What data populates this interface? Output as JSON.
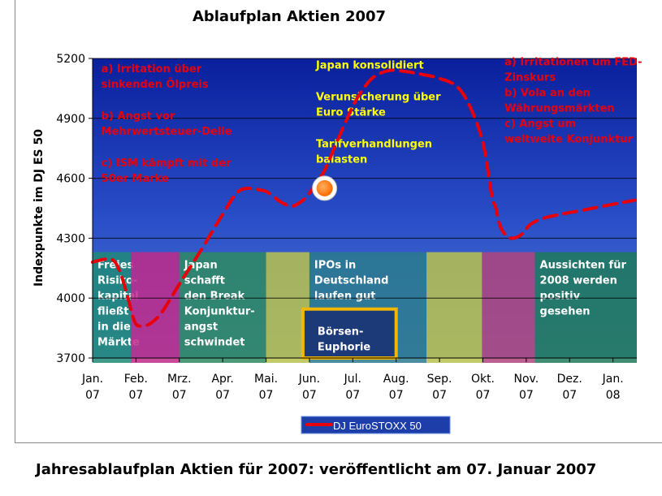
{
  "chart_data": {
    "type": "line",
    "title": "Ablaufplan Aktien 2007",
    "ylabel": "Indexpunkte im DJ ES 50",
    "xlabel": "",
    "ylim": [
      3700,
      5200
    ],
    "yticks": [
      3700,
      4000,
      4300,
      4600,
      4900,
      5200
    ],
    "grid": true,
    "legend_position": "bottom-center",
    "categories": [
      "Jan.\n07",
      "Feb.\n07",
      "Mrz.\n07",
      "Apr.\n07",
      "Mai.\n07",
      "Jun.\n07",
      "Jul.\n07",
      "Aug.\n07",
      "Sep.\n07",
      "Okt.\n07",
      "Nov.\n07",
      "Dez.\n07",
      "Jan.\n08"
    ],
    "series": [
      {
        "name": "DJ EuroSTOXX 50",
        "color": "#e8000b",
        "style": "dashed",
        "x": [
          0.0,
          0.3,
          0.5,
          0.65,
          0.78,
          0.9,
          1.0,
          1.15,
          1.35,
          1.6,
          2.0,
          2.5,
          3.0,
          3.4,
          3.9,
          4.1,
          4.35,
          4.6,
          4.85,
          5.05,
          5.35,
          5.65,
          6.0,
          6.25,
          6.5,
          6.85,
          7.2,
          7.6,
          8.0,
          8.4,
          8.7,
          9.0,
          9.2,
          9.3,
          9.4,
          9.55,
          9.7,
          9.9,
          10.1,
          10.4,
          10.8,
          11.3,
          12.0,
          12.5
        ],
        "values": [
          4180,
          4195,
          4185,
          4120,
          4030,
          3930,
          3870,
          3860,
          3875,
          3930,
          4070,
          4240,
          4420,
          4540,
          4540,
          4520,
          4480,
          4460,
          4490,
          4540,
          4640,
          4790,
          4960,
          5050,
          5110,
          5140,
          5135,
          5120,
          5100,
          5060,
          4960,
          4780,
          4520,
          4450,
          4360,
          4310,
          4300,
          4320,
          4370,
          4400,
          4420,
          4440,
          4470,
          4490
        ]
      }
    ],
    "markers": [
      {
        "type": "circle",
        "x": 5.35,
        "y": 4550,
        "fill": "#ff8a1e",
        "stroke": "#ffffff"
      }
    ],
    "phase_boxes": [
      {
        "x0": 0.0,
        "x1": 0.88,
        "y_top": 4230,
        "color": "#1e8a78",
        "label": "Freies\nRisiko-\nkapital\nfließt\nin die\nMärkte"
      },
      {
        "x0": 0.88,
        "x1": 2.0,
        "y_top": 4230,
        "color": "#c02a8a",
        "label": ""
      },
      {
        "x0": 2.0,
        "x1": 4.0,
        "y_top": 4230,
        "color": "#2d8a62",
        "label": "Japan\nschafft\nden Break\n\nKonjunktur-\nangst\nschwindet"
      },
      {
        "x0": 4.0,
        "x1": 5.0,
        "y_top": 4230,
        "color": "#b8c24e",
        "label": ""
      },
      {
        "x0": 5.0,
        "x1": 7.7,
        "y_top": 4230,
        "color": "#2a7a8e",
        "label": "IPOs in\nDeutschland\nlaufen gut"
      },
      {
        "x0": 7.7,
        "x1": 8.98,
        "y_top": 4230,
        "color": "#b8c24e",
        "label": ""
      },
      {
        "x0": 8.98,
        "x1": 10.2,
        "y_top": 4230,
        "color": "#b0447e",
        "label": ""
      },
      {
        "x0": 10.2,
        "x1": 12.55,
        "y_top": 4230,
        "color": "#1e7a5a",
        "label": "Aussichten für\n2008 werden\npositiv\ngesehen"
      }
    ],
    "highlight_box": {
      "x0": 4.85,
      "x1": 7.0,
      "y0": 3700,
      "y1": 3945,
      "color": "#f2b700",
      "fill": "#1c3a78",
      "label": "Börsen-\nEuphorie"
    },
    "annotations": [
      {
        "id": "left",
        "color": "#e8000b",
        "x": 0.2,
        "y": 5130,
        "lines": [
          "a) Irritation über",
          "sinkenden Ölpreis",
          "",
          "b) Angst vor",
          "Mehrwertsteuer-Delle",
          "",
          "c) ISM kämpft mit der",
          "50er Marke"
        ]
      },
      {
        "id": "mid",
        "color": "#ffff00",
        "x": 5.15,
        "y": 5150,
        "lines": [
          "Japan konsolidiert",
          "",
          "Verunsicherung über",
          "Euro Stärke",
          "",
          "Tarifverhandlungen",
          "balasten"
        ]
      },
      {
        "id": "right",
        "color": "#e8000b",
        "x": 9.5,
        "y": 5165,
        "lines": [
          "a) Irritationen um FED-",
          "Zinskurs",
          "b) Vola an den",
          "Währungsmärkten",
          "c) Angst um",
          "weltweite Konjunktur"
        ]
      }
    ]
  },
  "caption": "Jahresablaufplan Aktien für 2007: veröffentlicht am 07. Januar 2007",
  "colors": {
    "plot_top": "#0a1f9c",
    "plot_mid": "#2a4fc8",
    "plot_bottom": "#5a7fd0",
    "gridline": "#000000",
    "legend_bg": "#1d3ea8",
    "legend_border": "#6a8fe0"
  }
}
